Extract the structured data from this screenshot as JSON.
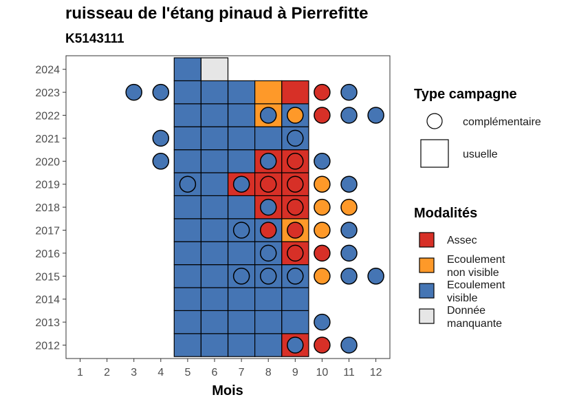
{
  "chart_data": {
    "type": "heatmap",
    "title": "ruisseau de l'étang pinaud à Pierrefitte",
    "subtitle": "K5143111",
    "xlabel": "Mois",
    "ylabel": "",
    "x_ticks": [
      "1",
      "2",
      "3",
      "4",
      "5",
      "6",
      "7",
      "8",
      "9",
      "10",
      "11",
      "12"
    ],
    "y_ticks": [
      "2012",
      "2013",
      "2014",
      "2015",
      "2016",
      "2017",
      "2018",
      "2019",
      "2020",
      "2021",
      "2022",
      "2023",
      "2024"
    ],
    "colors": {
      "Assec": "#d73027",
      "Ecoulement non visible": "#fe9929",
      "Ecoulement visible": "#4575b4",
      "Donnée manquante": "#e6e6e6"
    },
    "legend_type": {
      "title": "Type campagne",
      "entries": [
        "complémentaire",
        "usuelle"
      ]
    },
    "legend_modalites": {
      "title": "Modalités",
      "entries": [
        {
          "key": "Assec",
          "lines": [
            "Assec"
          ]
        },
        {
          "key": "Ecoulement non visible",
          "lines": [
            "Ecoulement",
            "non visible"
          ]
        },
        {
          "key": "Ecoulement visible",
          "lines": [
            "Ecoulement",
            "visible"
          ]
        },
        {
          "key": "Donnée manquante",
          "lines": [
            "Donnée",
            "manquante"
          ]
        }
      ]
    },
    "usuelle": [
      {
        "year": 2012,
        "month": 5,
        "modalite": "Ecoulement visible"
      },
      {
        "year": 2012,
        "month": 6,
        "modalite": "Ecoulement visible"
      },
      {
        "year": 2012,
        "month": 7,
        "modalite": "Ecoulement visible"
      },
      {
        "year": 2012,
        "month": 8,
        "modalite": "Ecoulement visible"
      },
      {
        "year": 2012,
        "month": 9,
        "modalite": "Assec"
      },
      {
        "year": 2013,
        "month": 5,
        "modalite": "Ecoulement visible"
      },
      {
        "year": 2013,
        "month": 6,
        "modalite": "Ecoulement visible"
      },
      {
        "year": 2013,
        "month": 7,
        "modalite": "Ecoulement visible"
      },
      {
        "year": 2013,
        "month": 8,
        "modalite": "Ecoulement visible"
      },
      {
        "year": 2013,
        "month": 9,
        "modalite": "Ecoulement visible"
      },
      {
        "year": 2014,
        "month": 5,
        "modalite": "Ecoulement visible"
      },
      {
        "year": 2014,
        "month": 6,
        "modalite": "Ecoulement visible"
      },
      {
        "year": 2014,
        "month": 7,
        "modalite": "Ecoulement visible"
      },
      {
        "year": 2014,
        "month": 8,
        "modalite": "Ecoulement visible"
      },
      {
        "year": 2014,
        "month": 9,
        "modalite": "Ecoulement visible"
      },
      {
        "year": 2015,
        "month": 5,
        "modalite": "Ecoulement visible"
      },
      {
        "year": 2015,
        "month": 6,
        "modalite": "Ecoulement visible"
      },
      {
        "year": 2015,
        "month": 7,
        "modalite": "Ecoulement visible"
      },
      {
        "year": 2015,
        "month": 8,
        "modalite": "Ecoulement visible"
      },
      {
        "year": 2015,
        "month": 9,
        "modalite": "Ecoulement visible"
      },
      {
        "year": 2016,
        "month": 5,
        "modalite": "Ecoulement visible"
      },
      {
        "year": 2016,
        "month": 6,
        "modalite": "Ecoulement visible"
      },
      {
        "year": 2016,
        "month": 7,
        "modalite": "Ecoulement visible"
      },
      {
        "year": 2016,
        "month": 8,
        "modalite": "Ecoulement visible"
      },
      {
        "year": 2016,
        "month": 9,
        "modalite": "Assec"
      },
      {
        "year": 2017,
        "month": 5,
        "modalite": "Ecoulement visible"
      },
      {
        "year": 2017,
        "month": 6,
        "modalite": "Ecoulement visible"
      },
      {
        "year": 2017,
        "month": 7,
        "modalite": "Ecoulement visible"
      },
      {
        "year": 2017,
        "month": 8,
        "modalite": "Ecoulement visible"
      },
      {
        "year": 2017,
        "month": 9,
        "modalite": "Ecoulement non visible"
      },
      {
        "year": 2018,
        "month": 5,
        "modalite": "Ecoulement visible"
      },
      {
        "year": 2018,
        "month": 6,
        "modalite": "Ecoulement visible"
      },
      {
        "year": 2018,
        "month": 7,
        "modalite": "Ecoulement visible"
      },
      {
        "year": 2018,
        "month": 8,
        "modalite": "Assec"
      },
      {
        "year": 2018,
        "month": 9,
        "modalite": "Assec"
      },
      {
        "year": 2019,
        "month": 5,
        "modalite": "Ecoulement visible"
      },
      {
        "year": 2019,
        "month": 6,
        "modalite": "Ecoulement visible"
      },
      {
        "year": 2019,
        "month": 7,
        "modalite": "Assec"
      },
      {
        "year": 2019,
        "month": 8,
        "modalite": "Assec"
      },
      {
        "year": 2019,
        "month": 9,
        "modalite": "Assec"
      },
      {
        "year": 2020,
        "month": 5,
        "modalite": "Ecoulement visible"
      },
      {
        "year": 2020,
        "month": 6,
        "modalite": "Ecoulement visible"
      },
      {
        "year": 2020,
        "month": 7,
        "modalite": "Ecoulement visible"
      },
      {
        "year": 2020,
        "month": 8,
        "modalite": "Assec"
      },
      {
        "year": 2020,
        "month": 9,
        "modalite": "Assec"
      },
      {
        "year": 2021,
        "month": 5,
        "modalite": "Ecoulement visible"
      },
      {
        "year": 2021,
        "month": 6,
        "modalite": "Ecoulement visible"
      },
      {
        "year": 2021,
        "month": 7,
        "modalite": "Ecoulement visible"
      },
      {
        "year": 2021,
        "month": 8,
        "modalite": "Ecoulement visible"
      },
      {
        "year": 2021,
        "month": 9,
        "modalite": "Ecoulement visible"
      },
      {
        "year": 2022,
        "month": 5,
        "modalite": "Ecoulement visible"
      },
      {
        "year": 2022,
        "month": 6,
        "modalite": "Ecoulement visible"
      },
      {
        "year": 2022,
        "month": 7,
        "modalite": "Ecoulement visible"
      },
      {
        "year": 2022,
        "month": 8,
        "modalite": "Ecoulement non visible"
      },
      {
        "year": 2022,
        "month": 9,
        "modalite": "Ecoulement visible"
      },
      {
        "year": 2023,
        "month": 5,
        "modalite": "Ecoulement visible"
      },
      {
        "year": 2023,
        "month": 6,
        "modalite": "Ecoulement visible"
      },
      {
        "year": 2023,
        "month": 7,
        "modalite": "Ecoulement visible"
      },
      {
        "year": 2023,
        "month": 8,
        "modalite": "Ecoulement non visible"
      },
      {
        "year": 2023,
        "month": 9,
        "modalite": "Assec"
      },
      {
        "year": 2024,
        "month": 5,
        "modalite": "Ecoulement visible"
      },
      {
        "year": 2024,
        "month": 6,
        "modalite": "Donnée manquante"
      }
    ],
    "complementaire": [
      {
        "year": 2012,
        "month": 9,
        "modalite": "Ecoulement visible"
      },
      {
        "year": 2012,
        "month": 10,
        "modalite": "Assec"
      },
      {
        "year": 2012,
        "month": 11,
        "modalite": "Ecoulement visible"
      },
      {
        "year": 2013,
        "month": 10,
        "modalite": "Ecoulement visible"
      },
      {
        "year": 2015,
        "month": 7,
        "modalite": "Ecoulement visible"
      },
      {
        "year": 2015,
        "month": 8,
        "modalite": "Ecoulement visible"
      },
      {
        "year": 2015,
        "month": 9,
        "modalite": "Ecoulement visible"
      },
      {
        "year": 2015,
        "month": 10,
        "modalite": "Ecoulement non visible"
      },
      {
        "year": 2015,
        "month": 11,
        "modalite": "Ecoulement visible"
      },
      {
        "year": 2015,
        "month": 12,
        "modalite": "Ecoulement visible"
      },
      {
        "year": 2016,
        "month": 8,
        "modalite": "Ecoulement visible"
      },
      {
        "year": 2016,
        "month": 9,
        "modalite": "Assec"
      },
      {
        "year": 2016,
        "month": 10,
        "modalite": "Assec"
      },
      {
        "year": 2016,
        "month": 11,
        "modalite": "Ecoulement visible"
      },
      {
        "year": 2017,
        "month": 7,
        "modalite": "Ecoulement visible"
      },
      {
        "year": 2017,
        "month": 8,
        "modalite": "Assec"
      },
      {
        "year": 2017,
        "month": 9,
        "modalite": "Assec"
      },
      {
        "year": 2017,
        "month": 10,
        "modalite": "Ecoulement non visible"
      },
      {
        "year": 2017,
        "month": 11,
        "modalite": "Ecoulement visible"
      },
      {
        "year": 2018,
        "month": 8,
        "modalite": "Ecoulement visible"
      },
      {
        "year": 2018,
        "month": 9,
        "modalite": "Assec"
      },
      {
        "year": 2018,
        "month": 10,
        "modalite": "Ecoulement non visible"
      },
      {
        "year": 2018,
        "month": 11,
        "modalite": "Ecoulement non visible"
      },
      {
        "year": 2019,
        "month": 5,
        "modalite": "Ecoulement visible"
      },
      {
        "year": 2019,
        "month": 7,
        "modalite": "Ecoulement visible"
      },
      {
        "year": 2019,
        "month": 8,
        "modalite": "Assec"
      },
      {
        "year": 2019,
        "month": 9,
        "modalite": "Assec"
      },
      {
        "year": 2019,
        "month": 10,
        "modalite": "Ecoulement non visible"
      },
      {
        "year": 2019,
        "month": 11,
        "modalite": "Ecoulement visible"
      },
      {
        "year": 2020,
        "month": 4,
        "modalite": "Ecoulement visible"
      },
      {
        "year": 2020,
        "month": 8,
        "modalite": "Ecoulement visible"
      },
      {
        "year": 2020,
        "month": 9,
        "modalite": "Assec"
      },
      {
        "year": 2020,
        "month": 10,
        "modalite": "Ecoulement visible"
      },
      {
        "year": 2021,
        "month": 4,
        "modalite": "Ecoulement visible"
      },
      {
        "year": 2021,
        "month": 9,
        "modalite": "Ecoulement visible"
      },
      {
        "year": 2022,
        "month": 8,
        "modalite": "Ecoulement visible"
      },
      {
        "year": 2022,
        "month": 9,
        "modalite": "Ecoulement non visible"
      },
      {
        "year": 2022,
        "month": 10,
        "modalite": "Assec"
      },
      {
        "year": 2022,
        "month": 11,
        "modalite": "Ecoulement visible"
      },
      {
        "year": 2022,
        "month": 12,
        "modalite": "Ecoulement visible"
      },
      {
        "year": 2023,
        "month": 3,
        "modalite": "Ecoulement visible"
      },
      {
        "year": 2023,
        "month": 4,
        "modalite": "Ecoulement visible"
      },
      {
        "year": 2023,
        "month": 10,
        "modalite": "Assec"
      },
      {
        "year": 2023,
        "month": 11,
        "modalite": "Ecoulement visible"
      }
    ]
  }
}
